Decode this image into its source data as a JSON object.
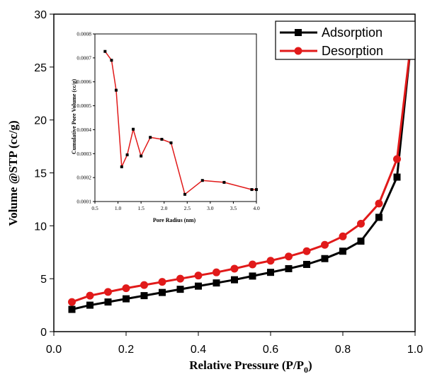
{
  "chart_data": [
    {
      "type": "line",
      "xlabel": "Relative Pressure (P/P",
      "xlabel_sub": "0",
      "xlabel_end": ")",
      "ylabel": "Volume @STP (cc/g)",
      "xlim": [
        0.0,
        1.0
      ],
      "ylim": [
        0,
        30
      ],
      "xticks": [
        "0.0",
        "0.2",
        "0.4",
        "0.6",
        "0.8",
        "1.0"
      ],
      "yticks": [
        "0",
        "5",
        "10",
        "15",
        "20",
        "25",
        "30"
      ],
      "legend_position": "top-right",
      "series": [
        {
          "name": "Adsorption",
          "color": "#000000",
          "marker": "square",
          "x": [
            0.05,
            0.1,
            0.15,
            0.2,
            0.25,
            0.3,
            0.35,
            0.4,
            0.45,
            0.5,
            0.55,
            0.6,
            0.65,
            0.7,
            0.75,
            0.8,
            0.85,
            0.9,
            0.95,
            0.99
          ],
          "y": [
            2.1,
            2.5,
            2.8,
            3.1,
            3.4,
            3.7,
            4.0,
            4.3,
            4.6,
            4.9,
            5.25,
            5.6,
            5.95,
            6.35,
            6.9,
            7.6,
            8.55,
            10.8,
            14.6,
            27.7
          ]
        },
        {
          "name": "Desorption",
          "color": "#e11a1a",
          "marker": "circle",
          "x": [
            0.05,
            0.1,
            0.15,
            0.2,
            0.25,
            0.3,
            0.35,
            0.4,
            0.45,
            0.5,
            0.55,
            0.6,
            0.65,
            0.7,
            0.75,
            0.8,
            0.85,
            0.9,
            0.95,
            0.99
          ],
          "y": [
            2.8,
            3.4,
            3.75,
            4.1,
            4.4,
            4.7,
            5.0,
            5.3,
            5.6,
            5.95,
            6.35,
            6.7,
            7.1,
            7.6,
            8.2,
            9.0,
            10.2,
            12.1,
            16.3,
            27.7
          ]
        }
      ]
    },
    {
      "type": "line",
      "xlabel": "Pore Radius (nm)",
      "ylabel": "Cumulative Pore Volume (cc/g)",
      "xlim": [
        0.5,
        4.0
      ],
      "ylim": [
        0.0001,
        0.0008
      ],
      "xticks": [
        "0.5",
        "1.0",
        "1.5",
        "2.0",
        "2.5",
        "3.0",
        "3.5",
        "4.0"
      ],
      "yticks": [
        "0.0001",
        "0.0002",
        "0.0003",
        "0.0004",
        "0.0005",
        "0.0006",
        "0.0007",
        "0.0008"
      ],
      "series": [
        {
          "color": "#e11a1a",
          "marker": "square",
          "x": [
            0.72,
            0.86,
            0.96,
            1.08,
            1.2,
            1.33,
            1.5,
            1.7,
            1.95,
            2.15,
            2.45,
            2.83,
            3.3,
            3.9,
            4.0
          ],
          "y": [
            0.000727,
            0.00069,
            0.000565,
            0.000245,
            0.000295,
            0.000402,
            0.00029,
            0.000368,
            0.00036,
            0.000345,
            0.00013,
            0.000188,
            0.00018,
            0.00015,
            0.00015
          ]
        }
      ]
    }
  ]
}
